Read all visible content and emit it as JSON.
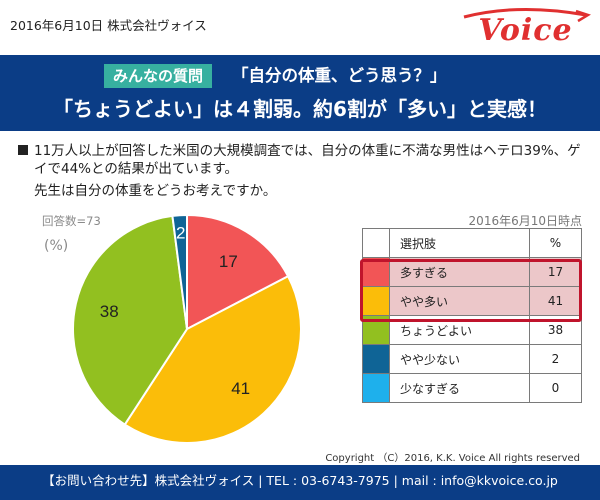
{
  "header": {
    "date_company": "2016年6月10日  株式会社ヴォイス",
    "logo_text": "Voice"
  },
  "banner": {
    "tag": "みんなの質問",
    "question": "「自分の体重、どう思う？」",
    "headline": "「ちょうどよい」は４割弱。約6割が「多い」と実感！"
  },
  "body": {
    "bullet_text": "11万人以上が回答した米国の大規模調査では、自分の体重に不満な男性はヘテロ39%、ゲイで44%との結果が出ています。",
    "question_text": "先生は自分の体重をどうお考えですか。"
  },
  "chart_meta": {
    "respondents": "回答数=73",
    "unit": "(%)",
    "as_of": "2016年6月10日時点"
  },
  "colors": {
    "brand_navy": "#0b3d86",
    "tag_teal": "#37b0a0",
    "logo_red": "#e03030",
    "highlight_red": "#c0142c",
    "highlight_fill": "#ecc7c9"
  },
  "chart_data": {
    "type": "pie",
    "slices": [
      {
        "label": "多すぎる",
        "value": 17,
        "color": "#f25556"
      },
      {
        "label": "やや多い",
        "value": 41,
        "color": "#fbbd09"
      },
      {
        "label": "ちょうどよい",
        "value": 38,
        "color": "#92c020"
      },
      {
        "label": "やや少ない",
        "value": 2,
        "color": "#0f6496"
      },
      {
        "label": "少なすぎる",
        "value": 0,
        "color": "#1eb0ec"
      }
    ]
  },
  "table": {
    "header_label": "選択肢",
    "header_unit": "%",
    "highlighted_rows": [
      0,
      1
    ]
  },
  "footer": {
    "copyright": "Copyright （C）2016, K.K. Voice All rights reserved",
    "contact": "【お問い合わせ先】株式会社ヴォイス | TEL : 03-6743-7975 | mail : info@kkvoice.co.jp"
  }
}
